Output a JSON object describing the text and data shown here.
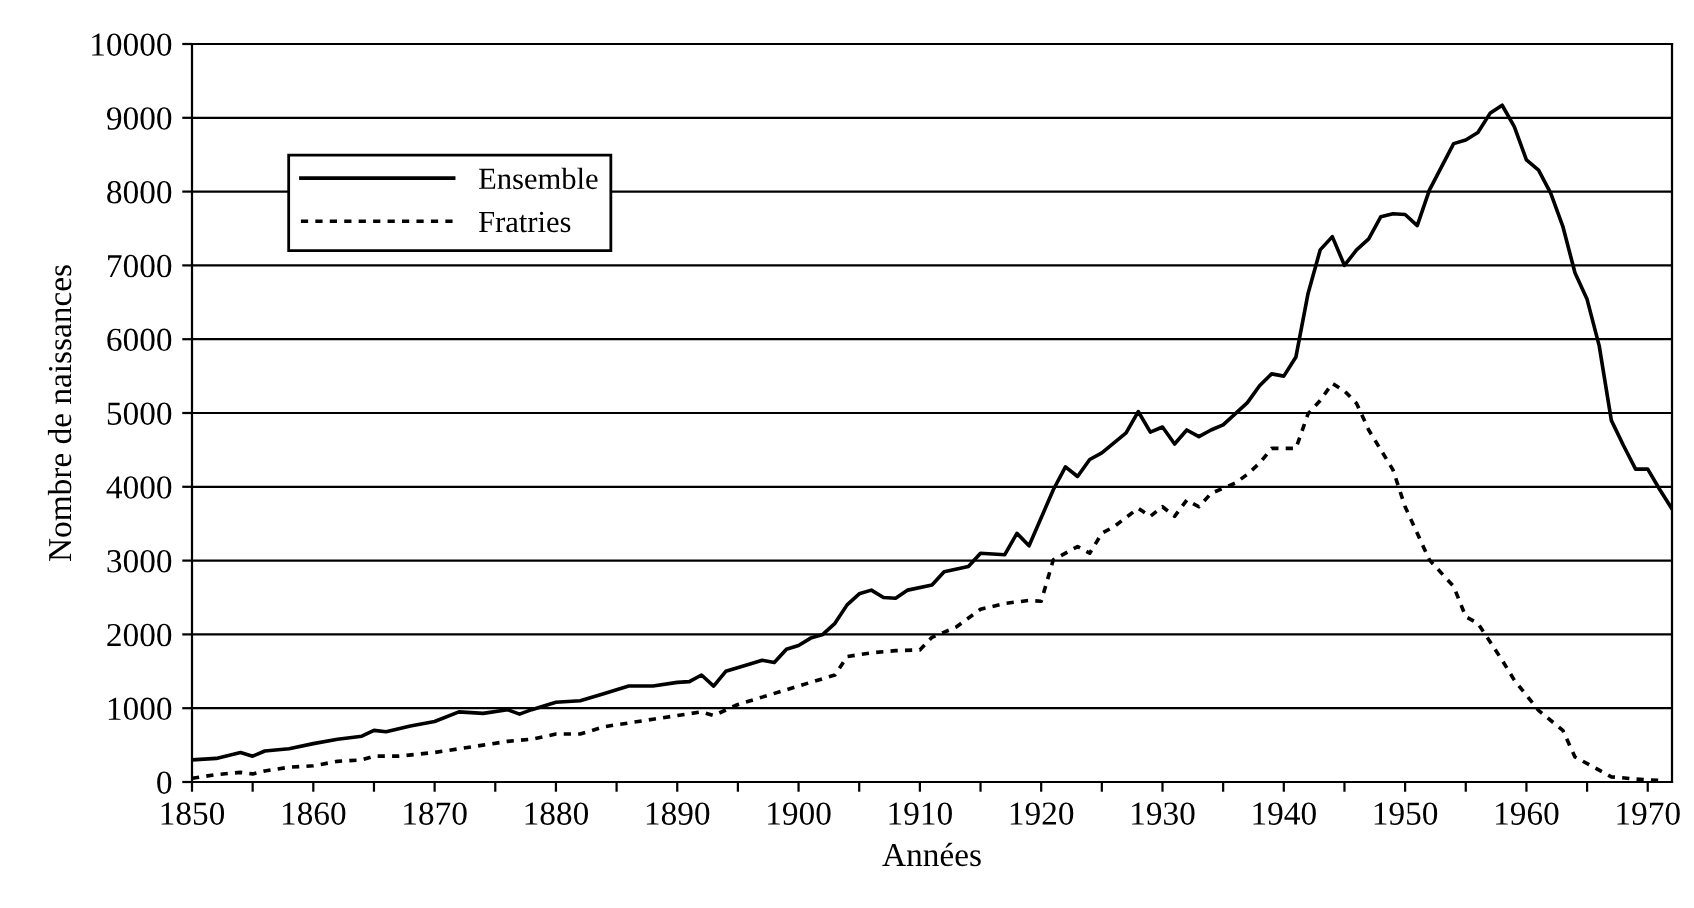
{
  "chart_data": {
    "type": "line",
    "xlabel": "Années",
    "ylabel": "Nombre de naissances",
    "xlim": [
      1850,
      1972
    ],
    "ylim": [
      0,
      10000
    ],
    "xticks": [
      1850,
      {
        "value": 1855,
        "label": null
      },
      1860,
      {
        "value": 1865,
        "label": null
      },
      1870,
      {
        "value": 1875,
        "label": null
      },
      1880,
      {
        "value": 1885,
        "label": null
      },
      1890,
      {
        "value": 1895,
        "label": null
      },
      1900,
      {
        "value": 1905,
        "label": null
      },
      1910,
      {
        "value": 1915,
        "label": null
      },
      1920,
      {
        "value": 1925,
        "label": null
      },
      1930,
      {
        "value": 1935,
        "label": null
      },
      1940,
      {
        "value": 1945,
        "label": null
      },
      1950,
      {
        "value": 1955,
        "label": null
      },
      1960,
      {
        "value": 1965,
        "label": null
      },
      1970
    ],
    "yticks": [
      0,
      1000,
      2000,
      3000,
      4000,
      5000,
      6000,
      7000,
      8000,
      9000,
      10000
    ],
    "grid": "y",
    "legend": "top left",
    "series": [
      {
        "name": "Ensemble",
        "color": "#000000",
        "line_style": "solid",
        "x": [
          1850,
          1852,
          1854,
          1855,
          1856,
          1858,
          1860,
          1862,
          1864,
          1865,
          1866,
          1868,
          1870,
          1872,
          1874,
          1876,
          1877,
          1878,
          1880,
          1882,
          1884,
          1886,
          1888,
          1890,
          1891,
          1892,
          1893,
          1894,
          1896,
          1897,
          1898,
          1899,
          1900,
          1901,
          1902,
          1903,
          1904,
          1905,
          1906,
          1907,
          1908,
          1909,
          1911,
          1912,
          1914,
          1915,
          1917,
          1918,
          1919,
          1921,
          1922,
          1923,
          1924,
          1925,
          1927,
          1928,
          1929,
          1930,
          1931,
          1932,
          1933,
          1934,
          1935,
          1937,
          1938,
          1939,
          1940,
          1941,
          1942,
          1943,
          1944,
          1945,
          1946,
          1947,
          1948,
          1949,
          1950,
          1951,
          1952,
          1954,
          1955,
          1956,
          1957,
          1958,
          1959,
          1960,
          1961,
          1962,
          1963,
          1964,
          1965,
          1966,
          1967,
          1968,
          1969,
          1970,
          1971,
          1972
        ],
        "values": [
          300,
          320,
          400,
          350,
          420,
          450,
          520,
          580,
          620,
          700,
          680,
          760,
          820,
          950,
          930,
          980,
          920,
          980,
          1080,
          1100,
          1200,
          1300,
          1300,
          1350,
          1360,
          1450,
          1300,
          1500,
          1600,
          1650,
          1620,
          1800,
          1850,
          1950,
          2000,
          2150,
          2400,
          2550,
          2600,
          2500,
          2490,
          2600,
          2670,
          2850,
          2920,
          3100,
          3080,
          3370,
          3200,
          3960,
          4270,
          4140,
          4370,
          4460,
          4730,
          5020,
          4740,
          4810,
          4580,
          4770,
          4680,
          4770,
          4840,
          5140,
          5370,
          5530,
          5500,
          5760,
          6620,
          7210,
          7390,
          7000,
          7210,
          7360,
          7660,
          7700,
          7690,
          7540,
          8020,
          8650,
          8700,
          8800,
          9060,
          9170,
          8880,
          8430,
          8290,
          7980,
          7530,
          6900,
          6540,
          5910,
          4900,
          4560,
          4240,
          4240,
          3960,
          3700
        ]
      },
      {
        "name": "Fratries",
        "color": "#000000",
        "line_style": "dotted",
        "x": [
          1850,
          1852,
          1854,
          1855,
          1856,
          1858,
          1860,
          1862,
          1864,
          1865,
          1867,
          1870,
          1872,
          1874,
          1876,
          1878,
          1880,
          1882,
          1884,
          1886,
          1888,
          1890,
          1892,
          1893,
          1895,
          1897,
          1900,
          1902,
          1903,
          1904,
          1906,
          1908,
          1910,
          1911,
          1913,
          1915,
          1917,
          1919,
          1920,
          1921,
          1923,
          1924,
          1925,
          1926,
          1928,
          1929,
          1930,
          1931,
          1932,
          1933,
          1934,
          1936,
          1937,
          1938,
          1939,
          1941,
          1942,
          1943,
          1944,
          1945,
          1946,
          1947,
          1949,
          1950,
          1952,
          1954,
          1955,
          1956,
          1958,
          1959,
          1961,
          1963,
          1964,
          1966,
          1967,
          1969,
          1971
        ],
        "values": [
          50,
          100,
          130,
          110,
          150,
          200,
          220,
          280,
          300,
          350,
          350,
          400,
          450,
          500,
          550,
          580,
          650,
          650,
          750,
          800,
          850,
          900,
          950,
          900,
          1050,
          1150,
          1300,
          1400,
          1450,
          1700,
          1750,
          1780,
          1790,
          1960,
          2100,
          2340,
          2420,
          2460,
          2450,
          3010,
          3190,
          3100,
          3370,
          3460,
          3710,
          3600,
          3730,
          3600,
          3820,
          3730,
          3910,
          4050,
          4170,
          4320,
          4520,
          4520,
          4990,
          5170,
          5400,
          5300,
          5130,
          4770,
          4230,
          3730,
          3010,
          2650,
          2240,
          2150,
          1650,
          1380,
          970,
          700,
          340,
          160,
          70,
          40,
          20
        ]
      }
    ]
  }
}
